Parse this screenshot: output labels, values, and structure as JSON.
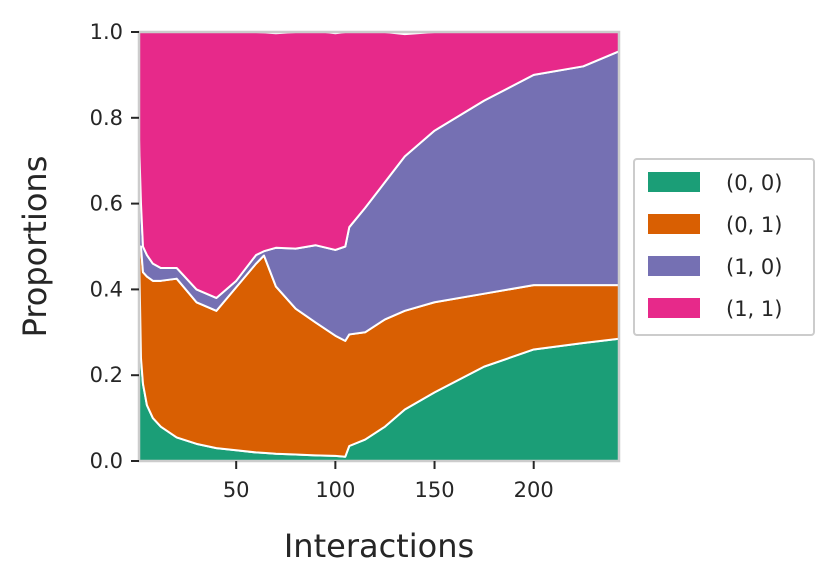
{
  "chart_data": {
    "type": "area",
    "stacked": true,
    "xlabel": "Interactions",
    "ylabel": "Proportions",
    "xlim": [
      1,
      243
    ],
    "ylim": [
      0,
      1
    ],
    "xticks": [
      50,
      100,
      150,
      200
    ],
    "xtick_labels": [
      "50",
      "100",
      "150",
      "200"
    ],
    "yticks": [
      0,
      0.2,
      0.4,
      0.6,
      0.8,
      1.0
    ],
    "ytick_labels": [
      "0.0",
      "0.2",
      "0.4",
      "0.6",
      "0.8",
      "1.0"
    ],
    "grid": false,
    "legend_position": "right",
    "x": [
      1,
      2,
      3,
      5,
      8,
      12,
      20,
      30,
      40,
      50,
      60,
      64,
      70,
      80,
      90,
      100,
      105,
      107,
      115,
      125,
      135,
      150,
      175,
      200,
      225,
      243
    ],
    "series": [
      {
        "name": "(0, 0)",
        "color": "#1b9e77",
        "values": [
          0.5,
          0.24,
          0.18,
          0.13,
          0.1,
          0.08,
          0.055,
          0.04,
          0.03,
          0.025,
          0.02,
          0.019,
          0.017,
          0.015,
          0.013,
          0.012,
          0.01,
          0.035,
          0.05,
          0.08,
          0.12,
          0.16,
          0.22,
          0.26,
          0.275,
          0.285
        ]
      },
      {
        "name": "(0, 1)",
        "color": "#d95f02",
        "values": [
          0.0,
          0.26,
          0.26,
          0.3,
          0.32,
          0.34,
          0.37,
          0.33,
          0.32,
          0.38,
          0.44,
          0.46,
          0.39,
          0.34,
          0.31,
          0.28,
          0.27,
          0.26,
          0.25,
          0.25,
          0.23,
          0.21,
          0.17,
          0.15,
          0.135,
          0.125
        ]
      },
      {
        "name": "(1, 0)",
        "color": "#7570b3",
        "values": [
          0.25,
          0.1,
          0.06,
          0.05,
          0.04,
          0.03,
          0.025,
          0.03,
          0.03,
          0.015,
          0.02,
          0.01,
          0.09,
          0.14,
          0.18,
          0.2,
          0.22,
          0.25,
          0.29,
          0.32,
          0.36,
          0.4,
          0.45,
          0.49,
          0.51,
          0.545
        ]
      },
      {
        "name": "(1, 1)",
        "color": "#e7298a",
        "values": [
          0.25,
          0.4,
          0.5,
          0.52,
          0.54,
          0.55,
          0.55,
          0.6,
          0.62,
          0.58,
          0.52,
          0.51,
          0.5,
          0.505,
          0.5,
          0.505,
          0.5,
          0.455,
          0.41,
          0.35,
          0.285,
          0.23,
          0.16,
          0.1,
          0.08,
          0.045
        ]
      }
    ],
    "colors": {
      "axis": "#cccccc",
      "text": "#262626",
      "background": "#ffffff"
    }
  }
}
